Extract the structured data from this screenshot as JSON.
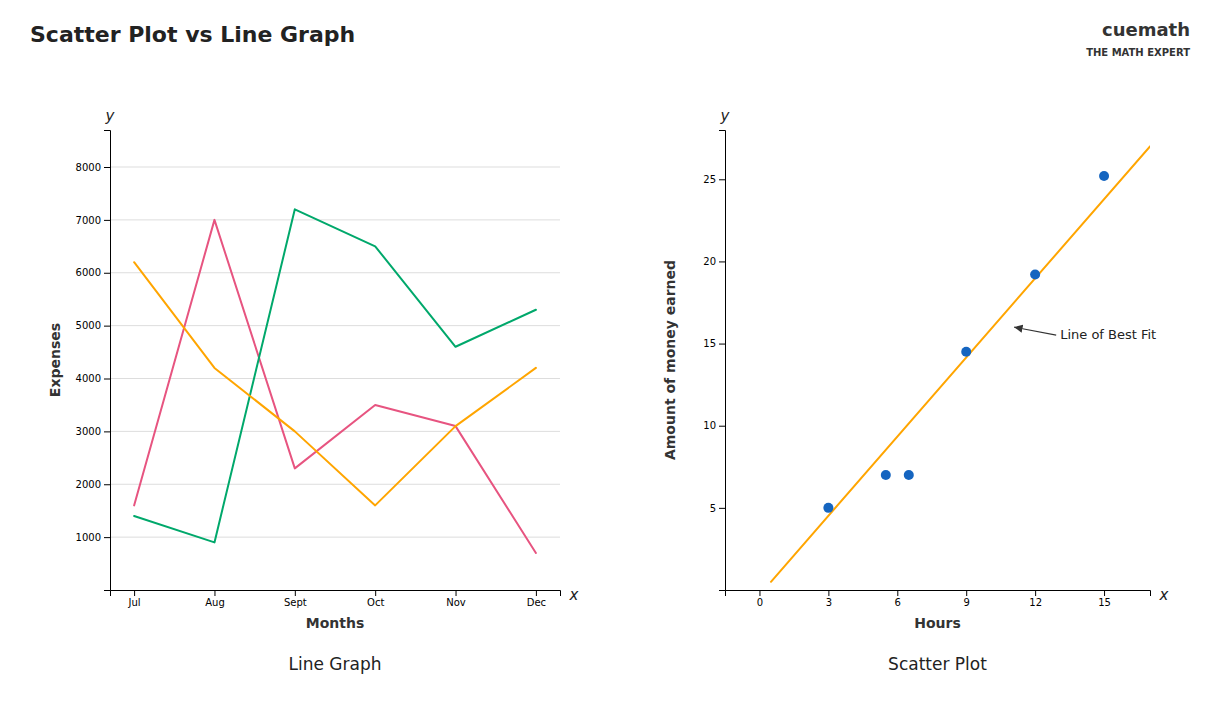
{
  "title": "Scatter Plot vs Line Graph",
  "annotations": [
    {
      "text": "cuemath"
    },
    {
      "text": "THE MATH EXPERT"
    }
  ],
  "chart_data": [
    {
      "type": "line",
      "subtitle": "Line Graph",
      "xlabel": "Months",
      "ylabel": "Expenses",
      "categories": [
        "Jul",
        "Aug",
        "Sept",
        "Oct",
        "Nov",
        "Dec"
      ],
      "series": [
        {
          "color": "#e75480",
          "values": [
            1600,
            7000,
            2300,
            3500,
            3100,
            700
          ]
        },
        {
          "color": "#00a86b",
          "values": [
            1400,
            900,
            7200,
            6500,
            4600,
            5300
          ]
        },
        {
          "color": "#FFA500",
          "values": [
            6200,
            4200,
            3000,
            1600,
            3100,
            4200
          ]
        }
      ],
      "ylim": [
        0,
        8700
      ],
      "yticks": [
        1000,
        2000,
        3000,
        4000,
        5000,
        6000,
        7000,
        8000
      ],
      "grid": true,
      "annotations": [
        {
          "text": "y"
        },
        {
          "text": "x"
        }
      ]
    },
    {
      "type": "scatter",
      "subtitle": "Scatter Plot",
      "xlabel": "Hours",
      "ylabel": "Amount of money earned",
      "series": [
        {
          "type": "scatter",
          "color": "#1565C0",
          "x": [
            3,
            5.5,
            6.5,
            9,
            12,
            15
          ],
          "values": [
            5,
            7,
            7,
            14.5,
            19.2,
            25.2
          ]
        },
        {
          "type": "line",
          "color": "#FFA500",
          "x": [
            0.5,
            17
          ],
          "values": [
            0.5,
            27.0
          ]
        }
      ],
      "xlim": [
        -1.5,
        17
      ],
      "xticks": [
        0,
        3,
        6,
        9,
        12,
        15
      ],
      "ylim": [
        0,
        28
      ],
      "yticks": [
        5,
        10,
        15,
        20,
        25
      ],
      "grid": false,
      "annotations": [
        {
          "text": "y"
        },
        {
          "text": "x"
        },
        {
          "text": "Line of Best Fit",
          "x": 11.0,
          "y": 16.0
        }
      ]
    }
  ]
}
